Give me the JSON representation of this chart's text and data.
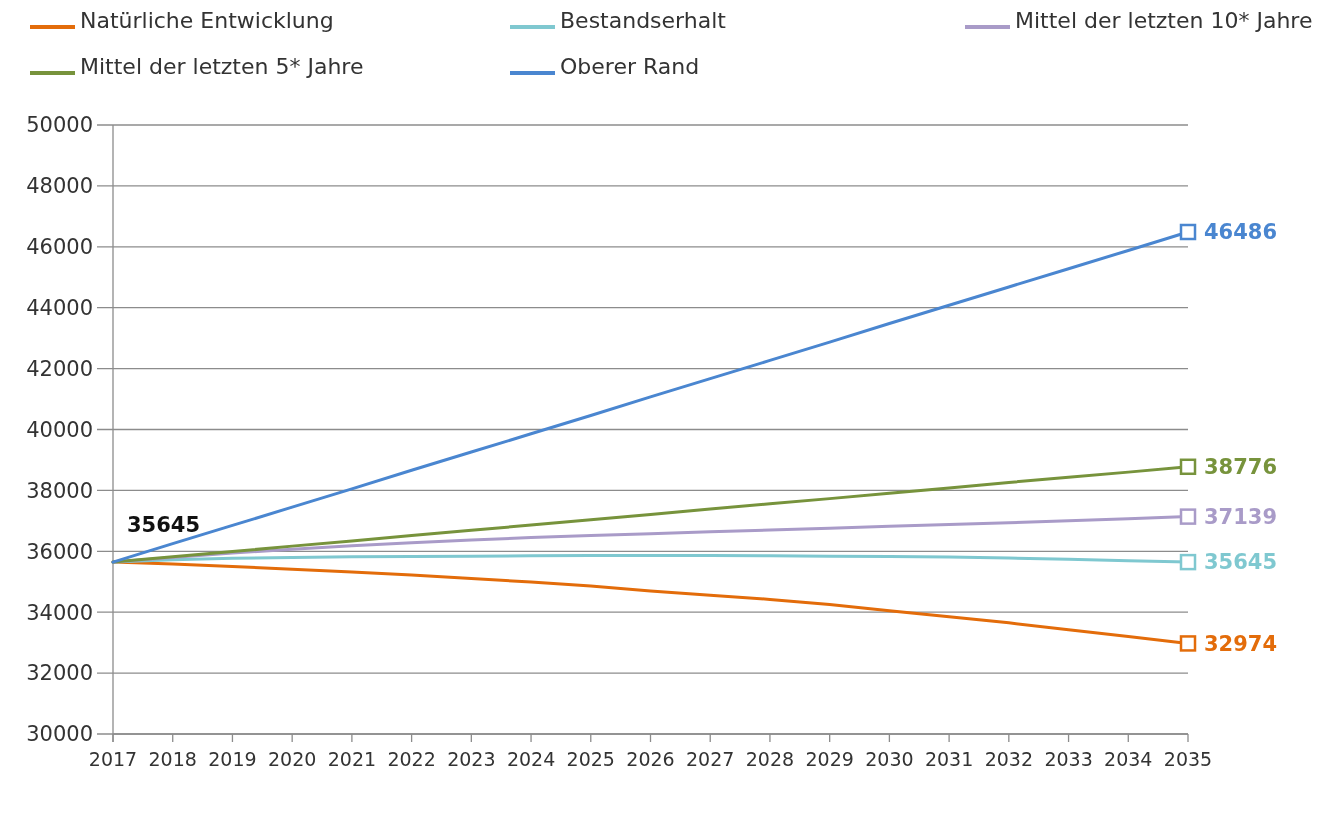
{
  "chart_data": {
    "type": "line",
    "categories": [
      "2017",
      "2018",
      "2019",
      "2020",
      "2021",
      "2022",
      "2023",
      "2024",
      "2025",
      "2026",
      "2027",
      "2028",
      "2029",
      "2030",
      "2031",
      "2032",
      "2033",
      "2034",
      "2035"
    ],
    "ylim": [
      30000,
      50000
    ],
    "yticks": [
      30000,
      32000,
      34000,
      36000,
      38000,
      40000,
      42000,
      44000,
      46000,
      48000,
      50000
    ],
    "grid": "y",
    "legend": "top",
    "annotations": [
      {
        "text": "35645",
        "x": "2017",
        "y": 35645
      }
    ],
    "series": [
      {
        "name": "Natürliche Entwicklung",
        "color": "#e36c0a",
        "values": [
          35645,
          35580,
          35500,
          35410,
          35320,
          35220,
          35110,
          34990,
          34860,
          34700,
          34560,
          34420,
          34250,
          34050,
          33850,
          33650,
          33420,
          33200,
          32974
        ],
        "value_labels": [
          null,
          null,
          null,
          null,
          null,
          null,
          null,
          null,
          null,
          null,
          null,
          null,
          null,
          null,
          null,
          null,
          null,
          null,
          "32974"
        ]
      },
      {
        "name": "Bestandserhalt",
        "color": "#7fc8d0",
        "values": [
          35645,
          35720,
          35770,
          35800,
          35820,
          35830,
          35840,
          35850,
          35860,
          35860,
          35860,
          35850,
          35840,
          35830,
          35810,
          35780,
          35740,
          35690,
          35645
        ],
        "value_labels": [
          null,
          null,
          null,
          null,
          null,
          null,
          null,
          null,
          null,
          null,
          null,
          null,
          null,
          null,
          null,
          null,
          null,
          null,
          "35645"
        ]
      },
      {
        "name": "Mittel der letzten 10* Jahre",
        "color": "#a99bc8",
        "values": [
          35645,
          35800,
          35940,
          36070,
          36180,
          36280,
          36370,
          36450,
          36520,
          36580,
          36640,
          36700,
          36760,
          36820,
          36880,
          36940,
          37000,
          37070,
          37139
        ],
        "value_labels": [
          null,
          null,
          null,
          null,
          null,
          null,
          null,
          null,
          null,
          null,
          null,
          null,
          null,
          null,
          null,
          null,
          null,
          null,
          "37139"
        ]
      },
      {
        "name": "Mittel der letzten 5* Jahre",
        "color": "#77933c",
        "values": [
          35645,
          35820,
          35990,
          36170,
          36340,
          36520,
          36690,
          36860,
          37040,
          37210,
          37390,
          37560,
          37730,
          37910,
          38080,
          38260,
          38430,
          38600,
          38776
        ],
        "value_labels": [
          null,
          null,
          null,
          null,
          null,
          null,
          null,
          null,
          null,
          null,
          null,
          null,
          null,
          null,
          null,
          null,
          null,
          null,
          "38776"
        ]
      },
      {
        "name": "Oberer Rand",
        "color": "#4a86d0",
        "values": [
          35645,
          36250,
          36850,
          37450,
          38050,
          38660,
          39260,
          39860,
          40460,
          41070,
          41670,
          42270,
          42870,
          43480,
          44080,
          44680,
          45280,
          45880,
          46486
        ],
        "value_labels": [
          null,
          null,
          null,
          null,
          null,
          null,
          null,
          null,
          null,
          null,
          null,
          null,
          null,
          null,
          null,
          null,
          null,
          null,
          "46486"
        ]
      }
    ]
  }
}
